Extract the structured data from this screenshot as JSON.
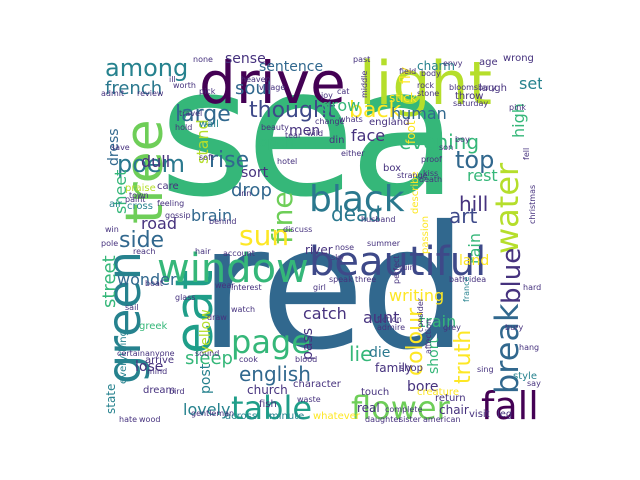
{
  "words": [
    {
      "id": "sea",
      "text": "sea",
      "color": "#35b779"
    },
    {
      "id": "red",
      "text": "red",
      "color": "#31688e"
    },
    {
      "id": "drive",
      "text": "drive",
      "color": "#440154"
    },
    {
      "id": "light",
      "text": "light",
      "color": "#b5de2b"
    },
    {
      "id": "tree",
      "text": "tree",
      "color": "#6ece58"
    },
    {
      "id": "eat",
      "text": "eat",
      "color": "#1f9e89"
    },
    {
      "id": "green",
      "text": "green",
      "color": "#26828e"
    },
    {
      "id": "window",
      "text": "window",
      "color": "#35b779"
    },
    {
      "id": "beautiful",
      "text": "beautiful",
      "color": "#3e4989"
    },
    {
      "id": "black",
      "text": "black",
      "color": "#2a788e"
    },
    {
      "id": "table",
      "text": "table",
      "color": "#1f9e89"
    },
    {
      "id": "flower",
      "text": "flower",
      "color": "#6ece58"
    },
    {
      "id": "fall",
      "text": "fall",
      "color": "#440154"
    },
    {
      "id": "page",
      "text": "page",
      "color": "#35b779"
    },
    {
      "id": "water",
      "text": "water",
      "color": "#b5de2b"
    },
    {
      "id": "break",
      "text": "break",
      "color": "#31688e"
    },
    {
      "id": "blue",
      "text": "blue",
      "color": "#46327e"
    },
    {
      "id": "fine",
      "text": "fine",
      "color": "#6ece58"
    },
    {
      "id": "sun",
      "text": "sun",
      "color": "#fde725"
    },
    {
      "id": "among",
      "text": "among",
      "color": "#26828e"
    },
    {
      "id": "back",
      "text": "back",
      "color": "#fde725"
    },
    {
      "id": "poem",
      "text": "poem",
      "color": "#2a788e"
    },
    {
      "id": "thought",
      "text": "thought",
      "color": "#3e4989"
    },
    {
      "id": "large",
      "text": "large",
      "color": "#31688e"
    },
    {
      "id": "side",
      "text": "side",
      "color": "#31688e"
    },
    {
      "id": "top",
      "text": "top",
      "color": "#31688e"
    },
    {
      "id": "rise",
      "text": "rise",
      "color": "#31688e"
    },
    {
      "id": "evening",
      "text": "evening",
      "color": "#35b779"
    },
    {
      "id": "english",
      "text": "english",
      "color": "#31688e"
    },
    {
      "id": "colour",
      "text": "colour",
      "color": "#fde725"
    },
    {
      "id": "truth",
      "text": "truth",
      "color": "#fde725"
    },
    {
      "id": "art",
      "text": "art",
      "color": "#3e4989"
    },
    {
      "id": "hill",
      "text": "hill",
      "color": "#46327e"
    },
    {
      "id": "dead",
      "text": "dead",
      "color": "#2a788e"
    },
    {
      "id": "lie",
      "text": "lie",
      "color": "#35b779"
    },
    {
      "id": "sleep",
      "text": "sleep",
      "color": "#35b779"
    },
    {
      "id": "drop",
      "text": "drop",
      "color": "#31688e"
    },
    {
      "id": "soul",
      "text": "soul",
      "color": "#31688e"
    },
    {
      "id": "french",
      "text": "french",
      "color": "#2a788e"
    },
    {
      "id": "street",
      "text": "street",
      "color": "#35b779"
    },
    {
      "id": "wonder",
      "text": "wonder",
      "color": "#31688e"
    },
    {
      "id": "lovely",
      "text": "lovely",
      "color": "#26828e"
    },
    {
      "id": "sentence",
      "text": "sentence",
      "color": "#31688e"
    },
    {
      "id": "sense",
      "text": "sense",
      "color": "#46327e"
    },
    {
      "id": "grow",
      "text": "grow",
      "color": "#35b779"
    },
    {
      "id": "face",
      "text": "face",
      "color": "#46327e"
    },
    {
      "id": "human",
      "text": "human",
      "color": "#31688e"
    },
    {
      "id": "set",
      "text": "set",
      "color": "#26828e"
    },
    {
      "id": "high",
      "text": "high",
      "color": "#35b779"
    },
    {
      "id": "stand",
      "text": "stand",
      "color": "#b5de2b"
    },
    {
      "id": "road",
      "text": "road",
      "color": "#46327e"
    },
    {
      "id": "brain",
      "text": "brain",
      "color": "#31688e"
    },
    {
      "id": "dull",
      "text": "dull",
      "color": "#46327e"
    },
    {
      "id": "sheet",
      "text": "sheet",
      "color": "#35b779"
    },
    {
      "id": "men",
      "text": "men",
      "color": "#46327e"
    },
    {
      "id": "open",
      "text": "open",
      "color": "#35b779"
    },
    {
      "id": "sort",
      "text": "sort",
      "color": "#46327e"
    },
    {
      "id": "catch",
      "text": "catch",
      "color": "#46327e"
    },
    {
      "id": "pass",
      "text": "pass",
      "color": "#46327e"
    },
    {
      "id": "aunt",
      "text": "aunt",
      "color": "#46327e"
    },
    {
      "id": "writing",
      "text": "writing",
      "color": "#fde725"
    },
    {
      "id": "train",
      "text": "train",
      "color": "#35b779"
    },
    {
      "id": "rain",
      "text": "rain",
      "color": "#35b779"
    },
    {
      "id": "land",
      "text": "land",
      "color": "#fde725"
    },
    {
      "id": "rest",
      "text": "rest",
      "color": "#35b779"
    },
    {
      "id": "short",
      "text": "short",
      "color": "#35b779"
    },
    {
      "id": "die",
      "text": "die",
      "color": "#2a788e"
    },
    {
      "id": "lose",
      "text": "lose",
      "color": "#46327e"
    },
    {
      "id": "post",
      "text": "post",
      "color": "#26828e"
    },
    {
      "id": "bore",
      "text": "bore",
      "color": "#46327e"
    },
    {
      "id": "real",
      "text": "real",
      "color": "#46327e"
    },
    {
      "id": "yellow",
      "text": "yellow",
      "color": "#b5de2b"
    },
    {
      "id": "state",
      "text": "state",
      "color": "#26828e"
    },
    {
      "id": "everything",
      "text": "everything",
      "color": "#26828e"
    },
    {
      "id": "dress",
      "text": "dress",
      "color": "#31688e"
    },
    {
      "id": "church",
      "text": "church",
      "color": "#46327e"
    },
    {
      "id": "family",
      "text": "family",
      "color": "#46327e"
    },
    {
      "id": "shop",
      "text": "shop",
      "color": "#46327e"
    },
    {
      "id": "fly",
      "text": "fly",
      "color": "#fde725"
    },
    {
      "id": "foot",
      "text": "foot",
      "color": "#fde725"
    },
    {
      "id": "describe",
      "text": "describe",
      "color": "#fde725"
    },
    {
      "id": "passion",
      "text": "passion",
      "color": "#fde725"
    },
    {
      "id": "stick",
      "text": "stick",
      "color": "#fde725"
    },
    {
      "id": "charm",
      "text": "charm",
      "color": "#26828e"
    },
    {
      "id": "throw",
      "text": "throw",
      "color": "#46327e"
    },
    {
      "id": "laugh",
      "text": "laugh",
      "color": "#46327e"
    },
    {
      "id": "age",
      "text": "age",
      "color": "#46327e"
    },
    {
      "id": "wrong",
      "text": "wrong",
      "color": "#46327e"
    },
    {
      "id": "style",
      "text": "style",
      "color": "#26828e"
    },
    {
      "id": "chair",
      "text": "chair",
      "color": "#46327e"
    },
    {
      "id": "visit",
      "text": "visit",
      "color": "#46327e"
    },
    {
      "id": "leg",
      "text": "leg",
      "color": "#46327e"
    },
    {
      "id": "minute",
      "text": "minute",
      "color": "#26828e"
    },
    {
      "id": "whatever",
      "text": "whatever",
      "color": "#fde725"
    },
    {
      "id": "across",
      "text": "across",
      "color": "#26828e"
    },
    {
      "id": "character",
      "text": "character",
      "color": "#46327e"
    },
    {
      "id": "fish",
      "text": "fish",
      "color": "#46327e"
    },
    {
      "id": "touch",
      "text": "touch",
      "color": "#46327e"
    },
    {
      "id": "creature",
      "text": "creature",
      "color": "#fde725"
    },
    {
      "id": "return",
      "text": "return",
      "color": "#46327e"
    },
    {
      "id": "care",
      "text": "care",
      "color": "#46327e"
    },
    {
      "id": "praise",
      "text": "praise",
      "color": "#b5de2b"
    },
    {
      "id": "town",
      "text": "town",
      "color": "#46327e"
    },
    {
      "id": "paint",
      "text": "paint",
      "color": "#46327e"
    },
    {
      "id": "air",
      "text": "air",
      "color": "#26828e"
    },
    {
      "id": "cross",
      "text": "cross",
      "color": "#26828e"
    },
    {
      "id": "greek",
      "text": "greek",
      "color": "#35b779"
    },
    {
      "id": "arrive",
      "text": "arrive",
      "color": "#46327e"
    },
    {
      "id": "mind",
      "text": "mind",
      "color": "#46327e"
    },
    {
      "id": "dream",
      "text": "dream",
      "color": "#46327e"
    },
    {
      "id": "hate",
      "text": "hate",
      "color": "#46327e"
    },
    {
      "id": "wood",
      "text": "wood",
      "color": "#46327e"
    },
    {
      "id": "summer",
      "text": "summer",
      "color": "#46327e"
    },
    {
      "id": "river",
      "text": "river",
      "color": "#46327e"
    },
    {
      "id": "nose",
      "text": "nose",
      "color": "#46327e"
    },
    {
      "id": "speak",
      "text": "speak",
      "color": "#46327e"
    },
    {
      "id": "three",
      "text": "three",
      "color": "#46327e"
    },
    {
      "id": "bath",
      "text": "bath",
      "color": "#46327e"
    },
    {
      "id": "idea",
      "text": "idea",
      "color": "#46327e"
    },
    {
      "id": "france",
      "text": "france",
      "color": "#26828e"
    },
    {
      "id": "consider",
      "text": "consider",
      "color": "#46327e"
    },
    {
      "id": "hard",
      "text": "hard",
      "color": "#46327e"
    },
    {
      "id": "wall",
      "text": "wall",
      "color": "#26828e"
    },
    {
      "id": "din",
      "text": "din",
      "color": "#46327e"
    },
    {
      "id": "tear",
      "text": "tear",
      "color": "#46327e"
    },
    {
      "id": "wild",
      "text": "wild",
      "color": "#46327e"
    },
    {
      "id": "son",
      "text": "son",
      "color": "#46327e"
    },
    {
      "id": "proof",
      "text": "proof",
      "color": "#46327e"
    },
    {
      "id": "kiss",
      "text": "kiss",
      "color": "#46327e"
    },
    {
      "id": "death",
      "text": "death",
      "color": "#46327e"
    },
    {
      "id": "box",
      "text": "box",
      "color": "#46327e"
    },
    {
      "id": "husband",
      "text": "husband",
      "color": "#46327e"
    },
    {
      "id": "discuss",
      "text": "discuss",
      "color": "#46327e"
    },
    {
      "id": "account",
      "text": "account",
      "color": "#46327e"
    },
    {
      "id": "interest",
      "text": "interest",
      "color": "#46327e"
    },
    {
      "id": "bloomsbury",
      "text": "bloomsbury",
      "color": "#46327e"
    },
    {
      "id": "england",
      "text": "england",
      "color": "#46327e"
    },
    {
      "id": "field",
      "text": "field",
      "color": "#46327e"
    },
    {
      "id": "middle",
      "text": "middle",
      "color": "#46327e"
    },
    {
      "id": "heaven",
      "text": "heaven",
      "color": "#46327e"
    },
    {
      "id": "hotel",
      "text": "hotel",
      "color": "#46327e"
    },
    {
      "id": "none",
      "text": "none",
      "color": "#46327e"
    },
    {
      "id": "past",
      "text": "past",
      "color": "#46327e"
    },
    {
      "id": "rock",
      "text": "rock",
      "color": "#46327e"
    },
    {
      "id": "stone",
      "text": "stone",
      "color": "#46327e"
    },
    {
      "id": "pink",
      "text": "pink",
      "color": "#46327e"
    },
    {
      "id": "saturday",
      "text": "saturday",
      "color": "#46327e"
    },
    {
      "id": "boy",
      "text": "boy",
      "color": "#46327e"
    },
    {
      "id": "grey",
      "text": "grey",
      "color": "#46327e"
    },
    {
      "id": "affection",
      "text": "affection",
      "color": "#46327e"
    },
    {
      "id": "perfect",
      "text": "perfect",
      "color": "#46327e"
    },
    {
      "id": "ruin",
      "text": "ruin",
      "color": "#46327e"
    },
    {
      "id": "blood",
      "text": "blood",
      "color": "#46327e"
    },
    {
      "id": "sound",
      "text": "sound",
      "color": "#46327e"
    },
    {
      "id": "certain",
      "text": "certain",
      "color": "#46327e"
    },
    {
      "id": "draw",
      "text": "draw",
      "color": "#46327e"
    },
    {
      "id": "watch",
      "text": "watch",
      "color": "#46327e"
    },
    {
      "id": "glass",
      "text": "glass",
      "color": "#46327e"
    },
    {
      "id": "boat",
      "text": "boat",
      "color": "#46327e"
    },
    {
      "id": "hair",
      "text": "hair",
      "color": "#46327e"
    },
    {
      "id": "win",
      "text": "win",
      "color": "#46327e"
    },
    {
      "id": "behind",
      "text": "behind",
      "color": "#46327e"
    },
    {
      "id": "inn",
      "text": "inn",
      "color": "#46327e"
    },
    {
      "id": "feeling",
      "text": "feeling",
      "color": "#46327e"
    },
    {
      "id": "save",
      "text": "save",
      "color": "#46327e"
    },
    {
      "id": "gentleman",
      "text": "gentleman",
      "color": "#46327e"
    },
    {
      "id": "bird",
      "text": "bird",
      "color": "#46327e"
    },
    {
      "id": "sister",
      "text": "sister",
      "color": "#46327e"
    },
    {
      "id": "american",
      "text": "american",
      "color": "#46327e"
    },
    {
      "id": "hang",
      "text": "hang",
      "color": "#46327e"
    },
    {
      "id": "pick",
      "text": "pick",
      "color": "#46327e"
    },
    {
      "id": "ill",
      "text": "ill",
      "color": "#46327e"
    },
    {
      "id": "worth",
      "text": "worth",
      "color": "#46327e"
    },
    {
      "id": "change",
      "text": "change",
      "color": "#46327e"
    },
    {
      "id": "beauty",
      "text": "beauty",
      "color": "#46327e"
    },
    {
      "id": "either",
      "text": "either",
      "color": "#46327e"
    },
    {
      "id": "body",
      "text": "body",
      "color": "#46327e"
    },
    {
      "id": "envy",
      "text": "envy",
      "color": "#46327e"
    },
    {
      "id": "joy",
      "text": "joy",
      "color": "#46327e"
    },
    {
      "id": "cat",
      "text": "cat",
      "color": "#46327e"
    },
    {
      "id": "whats",
      "text": "whats",
      "color": "#46327e"
    },
    {
      "id": "travel",
      "text": "travel",
      "color": "#46327e"
    },
    {
      "id": "reach",
      "text": "reach",
      "color": "#46327e"
    },
    {
      "id": "pole",
      "text": "pole",
      "color": "#46327e"
    },
    {
      "id": "wear",
      "text": "wear",
      "color": "#46327e"
    },
    {
      "id": "daughter",
      "text": "daughter",
      "color": "#46327e"
    },
    {
      "id": "complete",
      "text": "complete",
      "color": "#46327e"
    },
    {
      "id": "soft",
      "text": "soft",
      "color": "#46327e"
    },
    {
      "id": "village",
      "text": "village",
      "color": "#46327e"
    },
    {
      "id": "admit",
      "text": "admit",
      "color": "#46327e"
    },
    {
      "id": "fell",
      "text": "fell",
      "color": "#46327e"
    },
    {
      "id": "christmas",
      "text": "christmas",
      "color": "#46327e"
    },
    {
      "id": "sail",
      "text": "sail",
      "color": "#46327e"
    },
    {
      "id": "bury",
      "text": "bury",
      "color": "#46327e"
    },
    {
      "id": "strange",
      "text": "strange",
      "color": "#46327e"
    },
    {
      "id": "admire",
      "text": "admire",
      "color": "#46327e"
    },
    {
      "id": "fiction",
      "text": "fiction",
      "color": "#46327e"
    },
    {
      "id": "say",
      "text": "say",
      "color": "#46327e"
    },
    {
      "id": "sing",
      "text": "sing",
      "color": "#46327e"
    },
    {
      "id": "cook",
      "text": "cook",
      "color": "#46327e"
    },
    {
      "id": "anyone",
      "text": "anyone",
      "color": "#46327e"
    },
    {
      "id": "sky",
      "text": "sky",
      "color": "#46327e"
    },
    {
      "id": "review",
      "text": "review",
      "color": "#46327e"
    },
    {
      "id": "gossip",
      "text": "gossip",
      "color": "#46327e"
    },
    {
      "id": "hold",
      "text": "hold",
      "color": "#46327e"
    },
    {
      "id": "girl",
      "text": "girl",
      "color": "#46327e"
    },
    {
      "id": "waste",
      "text": "waste",
      "color": "#46327e"
    }
  ]
}
